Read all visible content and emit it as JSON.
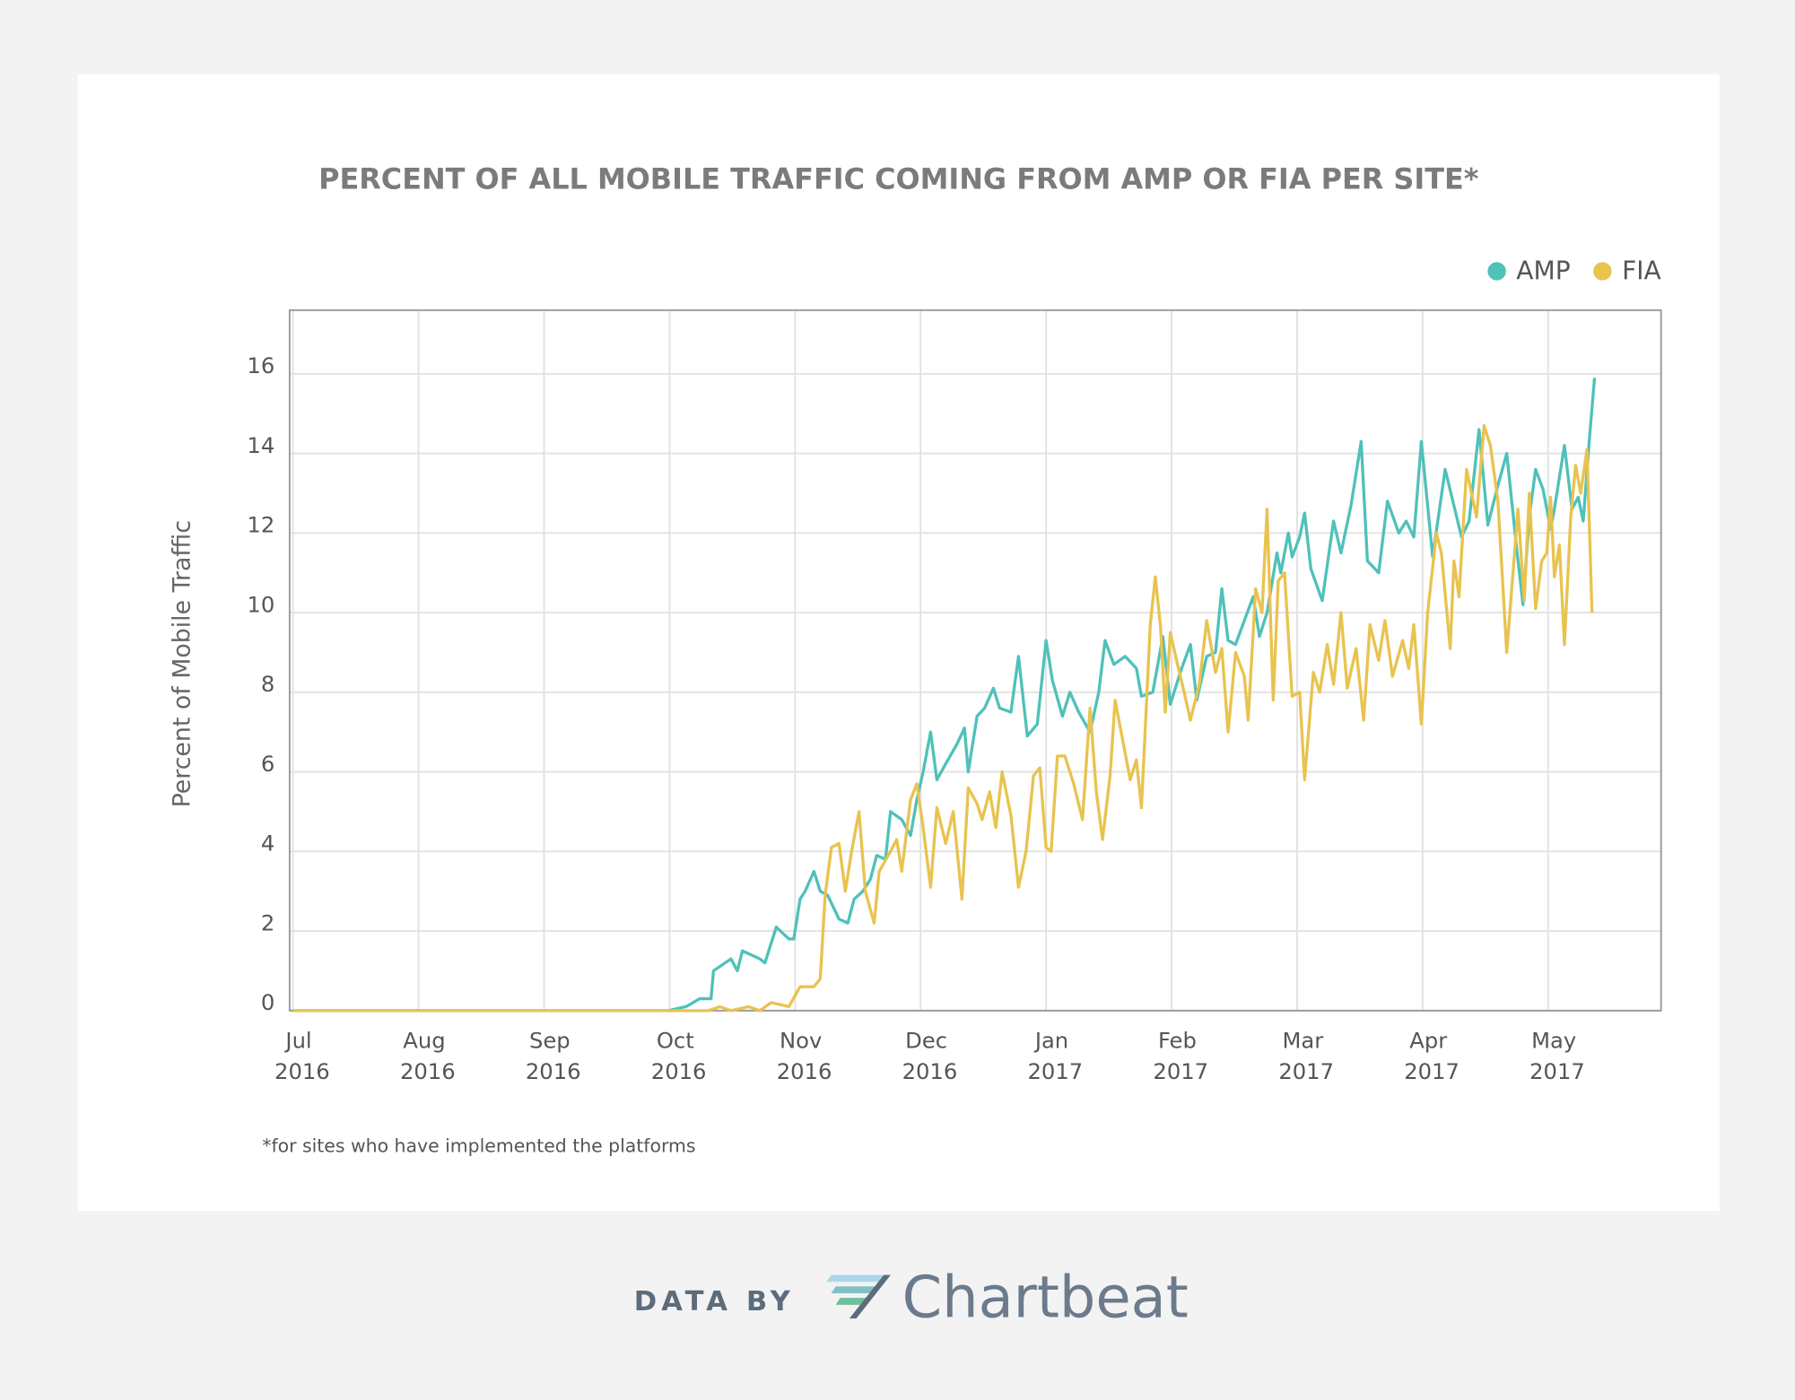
{
  "chart_data": {
    "type": "line",
    "title": "PERCENT OF ALL MOBILE TRAFFIC COMING FROM AMP OR FIA PER SITE*",
    "y_label": "Percent of Mobile Traffic",
    "footnote": "*for sites who have implemented the platforms",
    "legend": "top-right",
    "grid": true,
    "xlim": [
      0,
      10.9
    ],
    "xticks": [
      {
        "value": 0,
        "label": "Jul 2016"
      },
      {
        "value": 1,
        "label": "Aug 2016"
      },
      {
        "value": 2,
        "label": "Sep 2016"
      },
      {
        "value": 3,
        "label": "Oct 2016"
      },
      {
        "value": 4,
        "label": "Nov 2016"
      },
      {
        "value": 5,
        "label": "Dec 2016"
      },
      {
        "value": 6,
        "label": "Jan 2017"
      },
      {
        "value": 7,
        "label": "Feb 2017"
      },
      {
        "value": 8,
        "label": "Mar 2017"
      },
      {
        "value": 9,
        "label": "Apr 2017"
      },
      {
        "value": 10,
        "label": "May 2017"
      }
    ],
    "ylim": [
      0,
      17.6
    ],
    "yticks": [
      0,
      2,
      4,
      6,
      8,
      10,
      12,
      14,
      16
    ],
    "series": [
      {
        "name": "AMP",
        "color": "#4fc1b9",
        "x": [
          0,
          2.99,
          3.13,
          3.24,
          3.33,
          3.35,
          3.49,
          3.54,
          3.58,
          3.72,
          3.76,
          3.85,
          3.95,
          3.99,
          4.04,
          4.08,
          4.15,
          4.2,
          4.26,
          4.35,
          4.42,
          4.47,
          4.54,
          4.6,
          4.65,
          4.72,
          4.76,
          4.85,
          4.92,
          4.97,
          5.02,
          5.08,
          5.13,
          5.2,
          5.29,
          5.35,
          5.38,
          5.45,
          5.51,
          5.58,
          5.63,
          5.72,
          5.78,
          5.85,
          5.93,
          6.0,
          6.05,
          6.13,
          6.19,
          6.26,
          6.35,
          6.42,
          6.47,
          6.54,
          6.63,
          6.72,
          6.76,
          6.85,
          6.93,
          6.99,
          7.08,
          7.15,
          7.2,
          7.28,
          7.35,
          7.4,
          7.45,
          7.51,
          7.58,
          7.65,
          7.7,
          7.76,
          7.84,
          7.87,
          7.93,
          7.96,
          8.02,
          8.06,
          8.11,
          8.2,
          8.29,
          8.35,
          8.43,
          8.51,
          8.56,
          8.65,
          8.72,
          8.81,
          8.87,
          8.93,
          8.99,
          9.08,
          9.18,
          9.31,
          9.37,
          9.45,
          9.52,
          9.6,
          9.67,
          9.75,
          9.8,
          9.85,
          9.9,
          9.96,
          10.02,
          10.05,
          10.13,
          10.19,
          10.24,
          10.28,
          10.33,
          10.37
        ],
        "values": [
          0,
          0,
          0.1,
          0.3,
          0.3,
          1.0,
          1.3,
          1.0,
          1.5,
          1.3,
          1.2,
          2.1,
          1.8,
          1.8,
          2.8,
          3.0,
          3.5,
          3.0,
          2.9,
          2.3,
          2.2,
          2.8,
          3.0,
          3.3,
          3.9,
          3.8,
          5.0,
          4.8,
          4.4,
          5.3,
          6.0,
          7.0,
          5.8,
          6.2,
          6.7,
          7.1,
          6.0,
          7.4,
          7.6,
          8.1,
          7.6,
          7.5,
          8.9,
          6.9,
          7.2,
          9.3,
          8.3,
          7.4,
          8.0,
          7.5,
          7.0,
          8.0,
          9.3,
          8.7,
          8.9,
          8.6,
          7.9,
          8.0,
          9.4,
          7.7,
          8.6,
          9.2,
          7.8,
          8.9,
          9.0,
          10.6,
          9.3,
          9.2,
          9.8,
          10.4,
          9.4,
          10.0,
          11.5,
          11.0,
          12.0,
          11.4,
          11.9,
          12.5,
          11.1,
          10.3,
          12.3,
          11.5,
          12.7,
          14.3,
          11.3,
          11.0,
          12.8,
          12.0,
          12.3,
          11.9,
          14.3,
          11.4,
          13.6,
          11.9,
          12.3,
          14.6,
          12.2,
          13.2,
          14.0,
          11.6,
          10.2,
          12.4,
          13.6,
          13.1,
          12.1,
          12.6,
          14.2,
          12.6,
          12.9,
          12.3,
          14.4,
          15.9
        ]
      },
      {
        "name": "FIA",
        "color": "#e8c34f",
        "x": [
          0,
          3.04,
          3.31,
          3.4,
          3.49,
          3.63,
          3.72,
          3.81,
          3.95,
          4.04,
          4.15,
          4.2,
          4.24,
          4.29,
          4.35,
          4.4,
          4.45,
          4.51,
          4.56,
          4.63,
          4.67,
          4.76,
          4.81,
          4.85,
          4.92,
          4.97,
          5.02,
          5.08,
          5.13,
          5.2,
          5.26,
          5.33,
          5.38,
          5.45,
          5.49,
          5.55,
          5.6,
          5.65,
          5.72,
          5.78,
          5.84,
          5.9,
          5.95,
          6.0,
          6.04,
          6.09,
          6.15,
          6.22,
          6.29,
          6.35,
          6.4,
          6.45,
          6.51,
          6.55,
          6.61,
          6.67,
          6.72,
          6.76,
          6.83,
          6.87,
          6.91,
          6.95,
          6.99,
          7.04,
          7.1,
          7.15,
          7.22,
          7.28,
          7.35,
          7.4,
          7.45,
          7.51,
          7.58,
          7.61,
          7.67,
          7.72,
          7.76,
          7.81,
          7.85,
          7.9,
          7.96,
          8.02,
          8.06,
          8.13,
          8.18,
          8.24,
          8.29,
          8.35,
          8.4,
          8.47,
          8.53,
          8.58,
          8.65,
          8.7,
          8.76,
          8.84,
          8.89,
          8.93,
          8.99,
          9.04,
          9.11,
          9.15,
          9.22,
          9.25,
          9.29,
          9.35,
          9.43,
          9.49,
          9.54,
          9.6,
          9.67,
          9.76,
          9.81,
          9.85,
          9.9,
          9.95,
          9.99,
          10.02,
          10.05,
          10.09,
          10.13,
          10.18,
          10.22,
          10.26,
          10.31,
          10.35
        ],
        "values": [
          0,
          0,
          0,
          0.1,
          0,
          0.1,
          0,
          0.2,
          0.1,
          0.6,
          0.6,
          0.8,
          2.9,
          4.1,
          4.2,
          3.0,
          4.0,
          5.0,
          3.0,
          2.2,
          3.5,
          4.0,
          4.3,
          3.5,
          5.3,
          5.7,
          4.6,
          3.1,
          5.1,
          4.2,
          5.0,
          2.8,
          5.6,
          5.2,
          4.8,
          5.5,
          4.6,
          6.0,
          4.9,
          3.1,
          4.0,
          5.9,
          6.1,
          4.1,
          4.0,
          6.4,
          6.4,
          5.7,
          4.8,
          7.6,
          5.5,
          4.3,
          5.9,
          7.8,
          6.8,
          5.8,
          6.3,
          5.1,
          9.7,
          10.9,
          9.7,
          7.5,
          9.5,
          8.8,
          8.0,
          7.3,
          8.2,
          9.8,
          8.5,
          9.1,
          7.0,
          9.0,
          8.4,
          7.3,
          10.6,
          10.0,
          12.6,
          7.8,
          10.8,
          11.0,
          7.9,
          8.0,
          5.8,
          8.5,
          8.0,
          9.2,
          8.2,
          10.0,
          8.1,
          9.1,
          7.3,
          9.7,
          8.8,
          9.8,
          8.4,
          9.3,
          8.6,
          9.7,
          7.2,
          10.0,
          12.0,
          11.5,
          9.1,
          11.3,
          10.4,
          13.6,
          12.4,
          14.7,
          14.2,
          12.8,
          9.0,
          12.6,
          10.3,
          13.0,
          10.1,
          11.3,
          11.5,
          12.9,
          10.9,
          11.7,
          9.2,
          12.4,
          13.7,
          13.0,
          14.1,
          10.0
        ]
      }
    ]
  },
  "footer": {
    "prefix": "DATA BY",
    "brand": "Chartbeat"
  }
}
